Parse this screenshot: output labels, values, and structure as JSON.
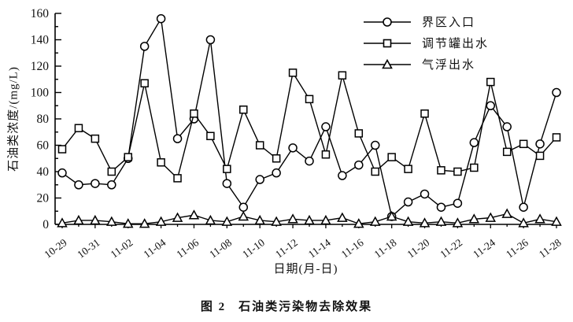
{
  "figure": {
    "caption_number": "图 2",
    "caption_title": "石油类污染物去除效果"
  },
  "chart_data": {
    "type": "line",
    "title": "",
    "xlabel": "日期(月-日)",
    "ylabel": "石油类浓度/(mg/L)",
    "ylim": [
      0,
      160
    ],
    "ytick_step": 20,
    "ytick_minor_step": 10,
    "grid": false,
    "legend_position": "top-right-inside",
    "line_color": "#000000",
    "x": [
      "10-29",
      "10-30",
      "10-31",
      "11-01",
      "11-02",
      "11-03",
      "11-04",
      "11-05",
      "11-06",
      "11-07",
      "11-08",
      "11-09",
      "11-10",
      "11-11",
      "11-12",
      "11-13",
      "11-14",
      "11-15",
      "11-16",
      "11-17",
      "11-18",
      "11-19",
      "11-20",
      "11-21",
      "11-22",
      "11-23",
      "11-24",
      "11-25",
      "11-26",
      "11-27",
      "11-28"
    ],
    "xtick_label_every": 2,
    "series": [
      {
        "name": "界区入口",
        "marker": "circle",
        "values": [
          39,
          30,
          31,
          30,
          50,
          135,
          156,
          65,
          80,
          140,
          31,
          13,
          34,
          39,
          58,
          48,
          74,
          37,
          45,
          60,
          6,
          17,
          23,
          13,
          16,
          62,
          90,
          74,
          13,
          61,
          100
        ]
      },
      {
        "name": "调节罐出水",
        "marker": "square",
        "values": [
          57,
          73,
          65,
          40,
          51,
          107,
          47,
          35,
          84,
          67,
          42,
          87,
          60,
          50,
          115,
          95,
          53,
          113,
          69,
          40,
          51,
          42,
          84,
          41,
          40,
          43,
          108,
          55,
          61,
          52,
          66
        ]
      },
      {
        "name": "气浮出水",
        "marker": "triangle",
        "values": [
          1,
          3,
          3,
          2,
          0.5,
          0.5,
          2,
          5,
          7,
          3,
          2,
          6,
          3,
          2,
          4,
          3,
          3,
          5,
          0.5,
          2,
          6,
          2,
          1,
          2,
          1,
          4,
          5,
          8,
          1,
          4,
          2
        ]
      }
    ]
  }
}
